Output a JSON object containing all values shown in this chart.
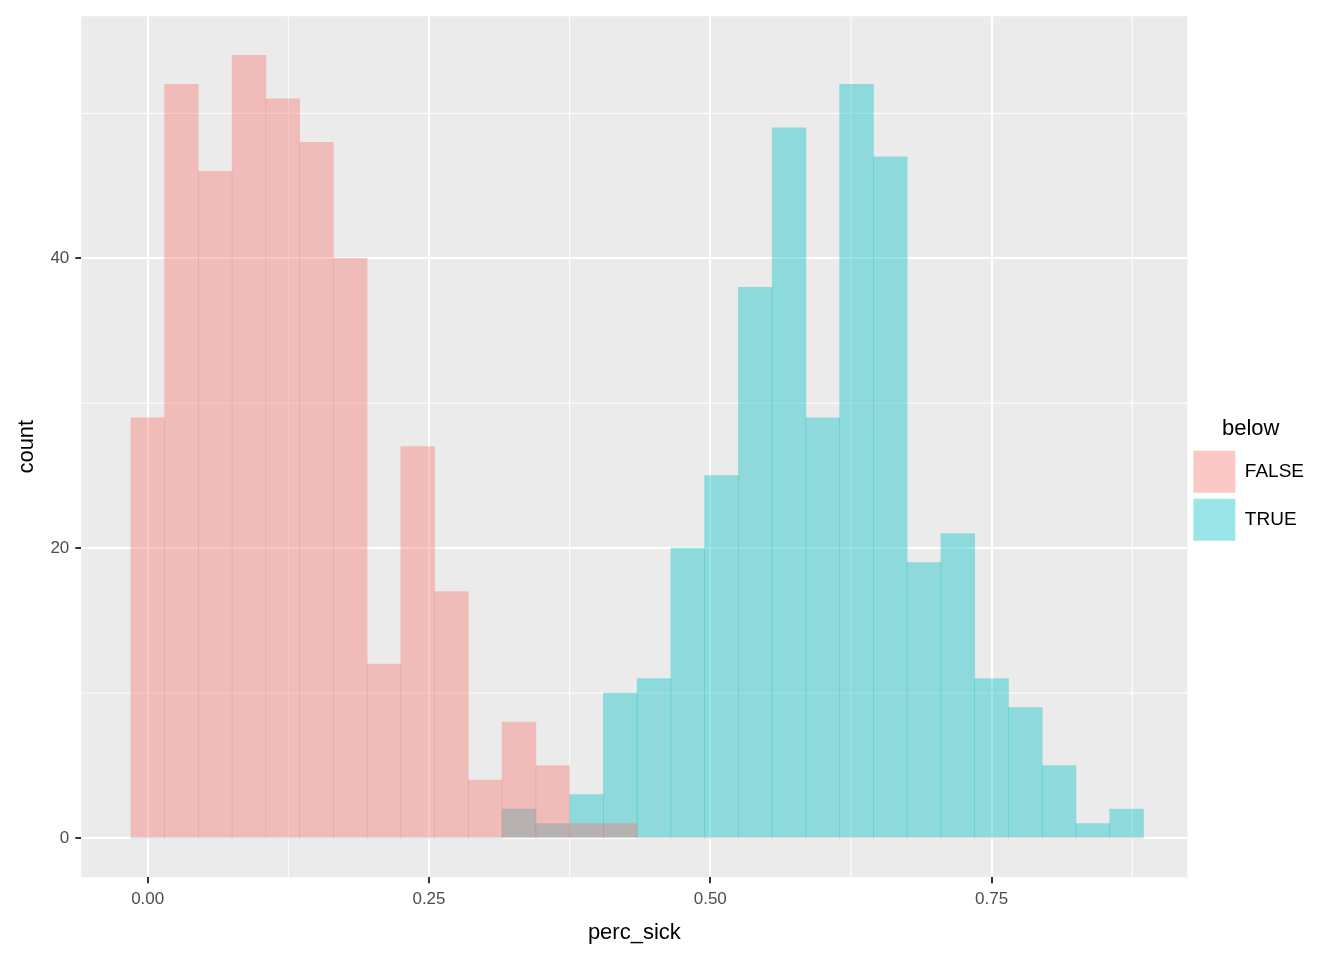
{
  "chart_data": {
    "type": "histogram",
    "xlabel": "perc_sick",
    "ylabel": "count",
    "legend_title": "below",
    "legend": "right",
    "grid": true,
    "bins": [
      -0.015,
      0.015,
      0.045,
      0.075,
      0.105,
      0.135,
      0.165,
      0.195,
      0.225,
      0.255,
      0.285,
      0.315,
      0.345,
      0.375,
      0.405,
      0.435,
      0.465,
      0.495,
      0.525,
      0.555,
      0.585,
      0.615,
      0.645,
      0.675,
      0.705,
      0.735,
      0.765,
      0.795,
      0.825,
      0.855,
      0.885
    ],
    "series": [
      {
        "name": "FALSE",
        "color": "#f8766d",
        "values": [
          29,
          52,
          46,
          54,
          51,
          48,
          40,
          12,
          27,
          17,
          4,
          8,
          5,
          1,
          1,
          0,
          0,
          0,
          0,
          0,
          0,
          0,
          0,
          0,
          0,
          0,
          0,
          0,
          0,
          0
        ]
      },
      {
        "name": "TRUE",
        "color": "#00bfc4",
        "values": [
          0,
          0,
          0,
          0,
          0,
          0,
          0,
          0,
          0,
          0,
          0,
          2,
          1,
          3,
          10,
          11,
          20,
          25,
          38,
          49,
          29,
          52,
          47,
          19,
          21,
          11,
          9,
          5,
          1,
          2
        ]
      }
    ],
    "xlim": [
      -0.059,
      0.924
    ],
    "ylim": [
      -2.7,
      56.7
    ],
    "xticks": [
      {
        "value": 0,
        "label": "0.00"
      },
      {
        "value": 0.25,
        "label": "0.25"
      },
      {
        "value": 0.5,
        "label": "0.50"
      },
      {
        "value": 0.75,
        "label": "0.75"
      }
    ],
    "yticks": [
      0,
      20,
      40
    ]
  }
}
